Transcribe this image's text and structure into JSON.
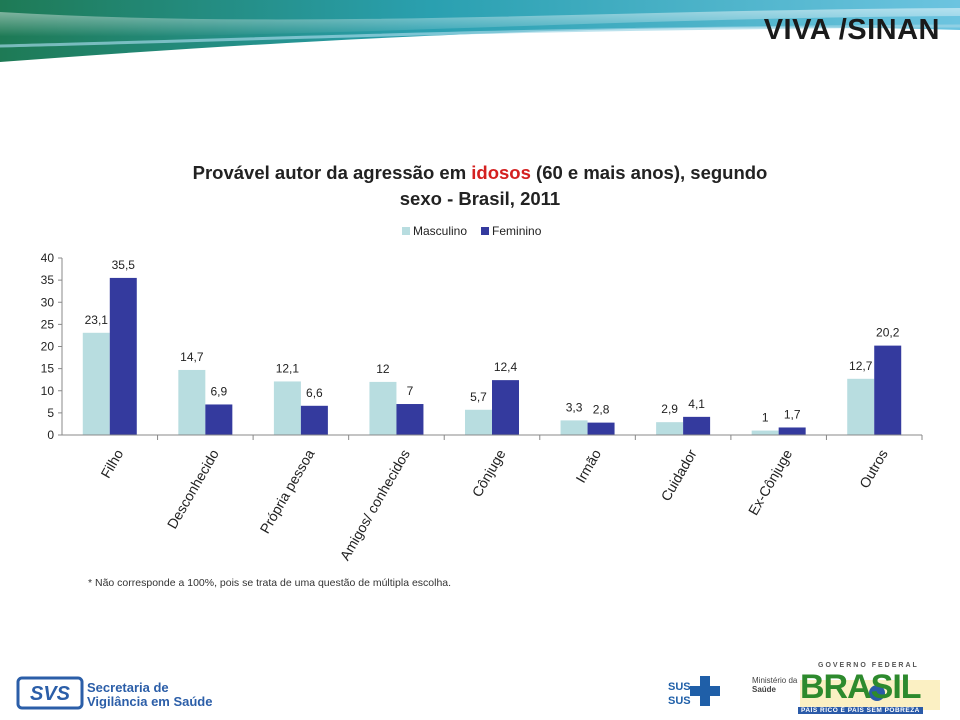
{
  "brand_label": "VIVA /SINAN",
  "title": {
    "part1": "Provável autor da agressão em ",
    "highlight": "idosos",
    "part2": " (60 e mais anos),  segundo",
    "line2": "sexo - Brasil, 2011"
  },
  "footnote": "* Não corresponde a 100%, pois se trata de uma questão de múltipla escolha.",
  "footer": {
    "svs_line1": "Secretaria de",
    "svs_line2": "Vigilância em Saúde",
    "sus": "SUS",
    "ministerio_line1": "Ministério da",
    "ministerio_line2": "Saúde",
    "gov_label": "GOVERNO FEDERAL",
    "brasil": "BRASIL",
    "brasil_sub": "PAÍS RICO É PAÍS SEM POBREZA"
  },
  "colors": {
    "masculino": "#b8dde0",
    "feminino": "#343a9e",
    "title_highlight": "#d42020"
  },
  "chart_data": {
    "type": "bar",
    "categories": [
      "Filho",
      "Desconhecido",
      "Própria pessoa",
      "Amigos/ conhecidos",
      "Cônjuge",
      "Irmão",
      "Cuidador",
      "Ex-Cônjuge",
      "Outros"
    ],
    "series": [
      {
        "name": "Masculino",
        "values": [
          23.1,
          14.7,
          12.1,
          12,
          5.7,
          3.3,
          2.9,
          1,
          12.7
        ],
        "labels": [
          "23,1",
          "14,7",
          "12,1",
          "12",
          "5,7",
          "3,3",
          "2,9",
          "1",
          "12,7"
        ]
      },
      {
        "name": "Feminino",
        "values": [
          35.5,
          6.9,
          6.6,
          7,
          12.4,
          2.8,
          4.1,
          1.7,
          20.2
        ],
        "labels": [
          "35,5",
          "6,9",
          "6,6",
          "7",
          "12,4",
          "2,8",
          "4,1",
          "1,7",
          "20,2"
        ]
      }
    ],
    "ylim": [
      0,
      40
    ],
    "yticks": [
      0,
      5,
      10,
      15,
      20,
      25,
      30,
      35,
      40
    ],
    "legend_position": "top-center",
    "grid": false
  }
}
